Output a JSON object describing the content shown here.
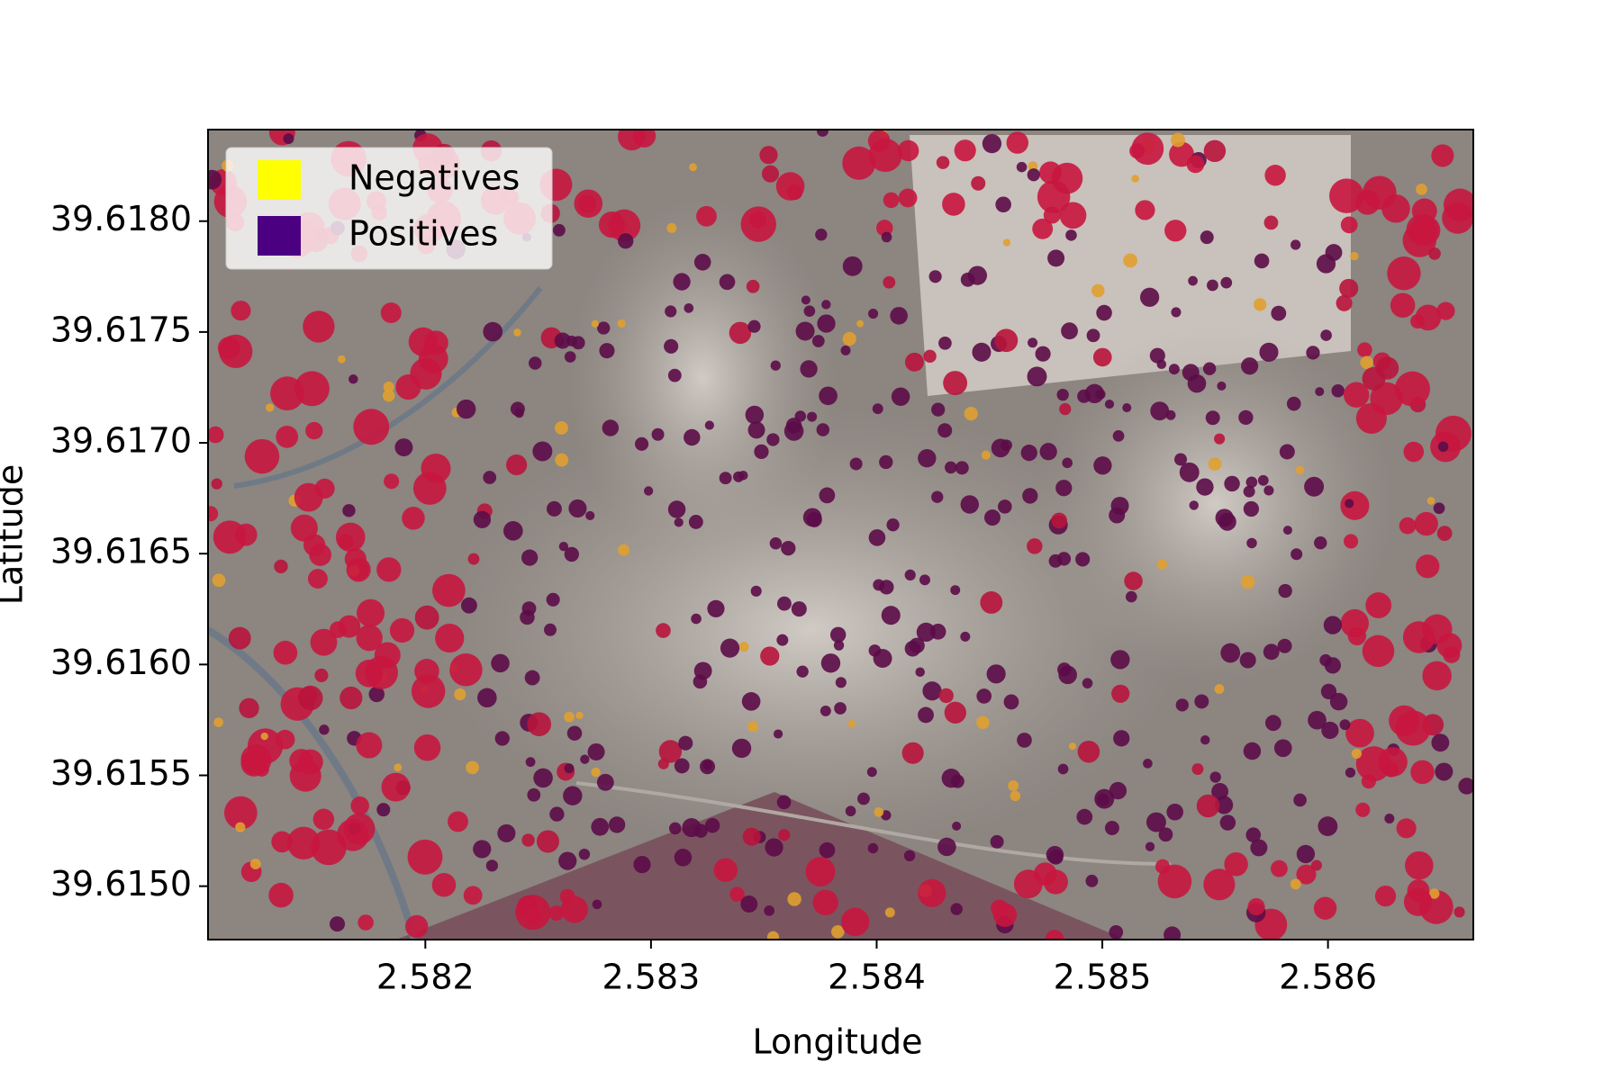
{
  "chart_data": {
    "type": "map",
    "x_label": "Longitude",
    "y_label": "Latitude",
    "xlim": [
      2.581037,
      2.586644
    ],
    "ylim": [
      39.614759,
      39.618413
    ],
    "xticks": [
      2.582,
      2.583,
      2.584,
      2.585,
      2.586
    ],
    "yticks": [
      {
        "value": 39.615,
        "label": "39.6150"
      },
      {
        "value": 39.6155,
        "label": "39.6155"
      },
      {
        "value": 39.616,
        "label": "39.6160"
      },
      {
        "value": 39.6165,
        "label": "39.6165"
      },
      {
        "value": 39.617,
        "label": "39.6170"
      },
      {
        "value": 39.6175,
        "label": "39.6175"
      },
      {
        "value": 39.618,
        "label": "39.6180"
      }
    ],
    "legend": [
      {
        "name": "Negatives",
        "color": "#ffff00"
      },
      {
        "name": "Positives",
        "color": "#4b0082"
      }
    ],
    "legend_position": "upper left"
  }
}
